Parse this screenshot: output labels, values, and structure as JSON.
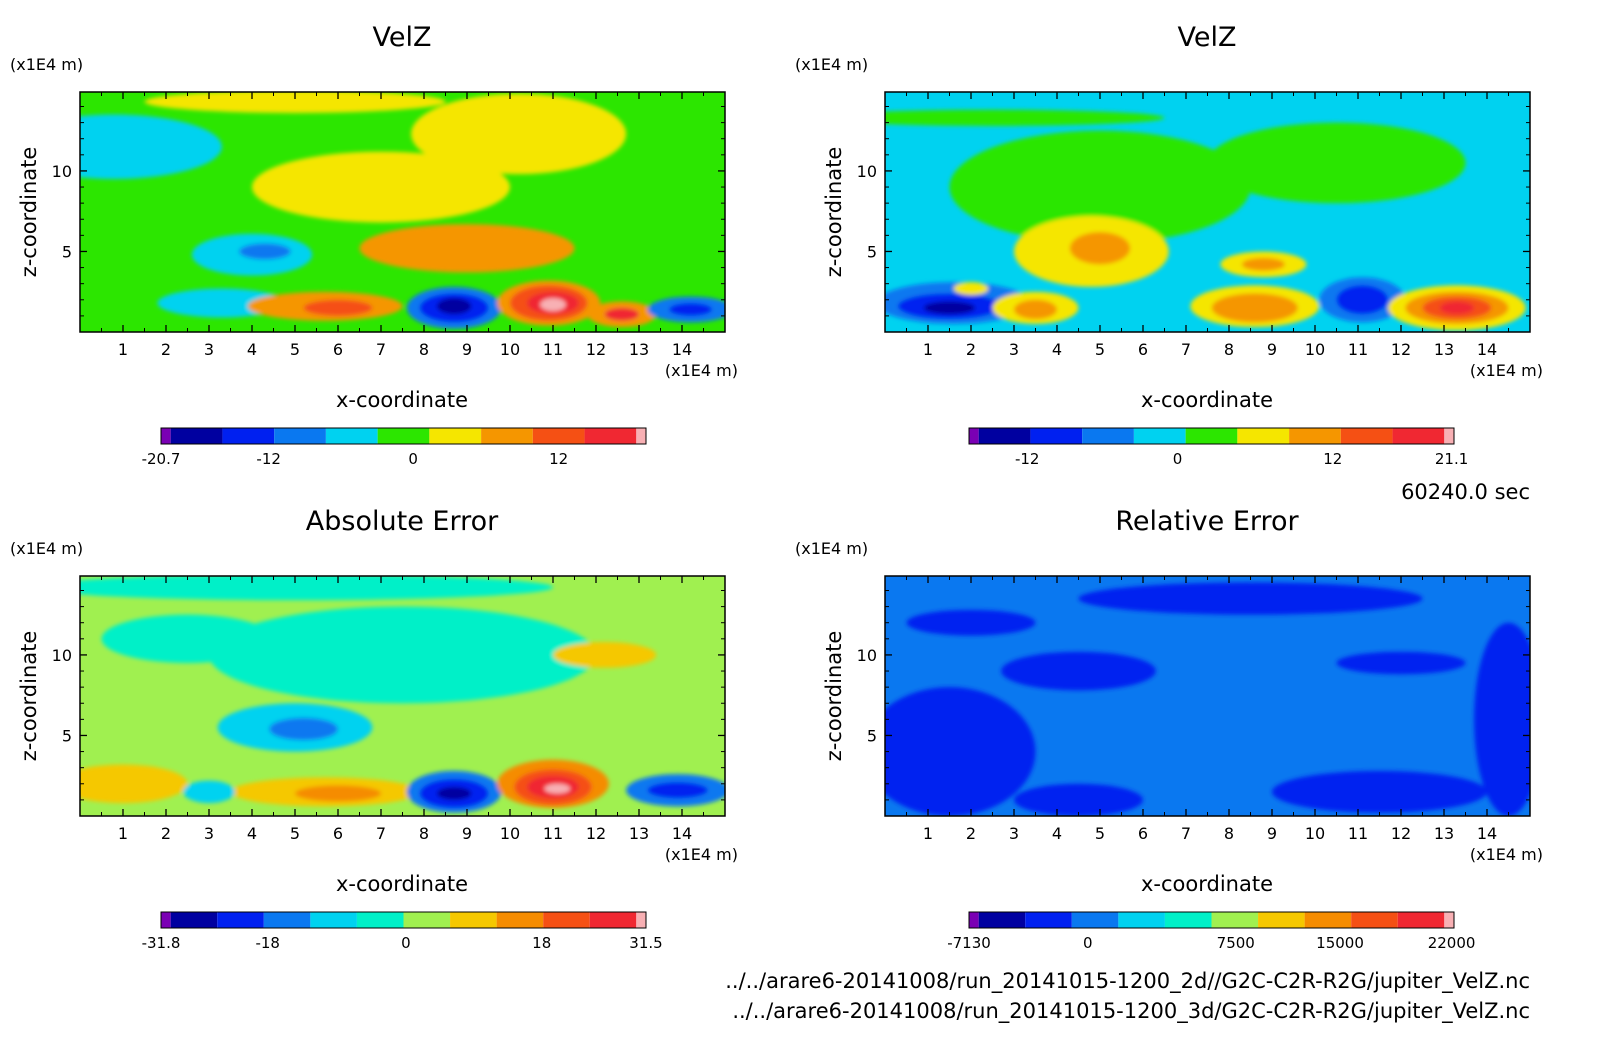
{
  "time_label": "60240.0 sec",
  "files": [
    "../../arare6-20141008/run_20141015-1200_2d//G2C-C2R-R2G/jupiter_VelZ.nc",
    "../../arare6-20141008/run_20141015-1200_3d/G2C-C2R-R2G/jupiter_VelZ.nc"
  ],
  "chart_data": [
    {
      "type": "heatmap",
      "title": "VelZ",
      "xlabel": "x-coordinate",
      "ylabel": "z-coordinate",
      "x_unit": "(x1E4 m)",
      "y_unit": "(x1E4 m)",
      "xlim": [
        0,
        15
      ],
      "ylim": [
        0,
        14.9
      ],
      "x_ticks": [
        "1",
        "2",
        "3",
        "4",
        "5",
        "6",
        "7",
        "8",
        "9",
        "10",
        "11",
        "12",
        "13",
        "14"
      ],
      "y_ticks": [
        "5",
        "10"
      ],
      "background_level": 5,
      "palette": [
        "#7a00b4",
        "#0000a0",
        "#0020f0",
        "#0a78f0",
        "#00d2f0",
        "#2ce600",
        "#f5e600",
        "#f59600",
        "#f55014",
        "#f02832",
        "#f8b0b4"
      ],
      "colorbar_ticks": [
        "-20.7",
        "-12",
        "0",
        "12"
      ],
      "colorbar_tick_pos": [
        0,
        0.222,
        0.52,
        0.82
      ],
      "features": [
        {
          "x": 0.8,
          "y": 11.5,
          "rx": 2.5,
          "ry": 2.0,
          "level": 4
        },
        {
          "x": 4.0,
          "y": 4.8,
          "rx": 1.4,
          "ry": 1.3,
          "level": 4
        },
        {
          "x": 4.3,
          "y": 5.0,
          "rx": 0.6,
          "ry": 0.5,
          "level": 3
        },
        {
          "x": 3.3,
          "y": 1.8,
          "rx": 1.5,
          "ry": 0.9,
          "level": 4
        },
        {
          "x": 7.0,
          "y": 9.0,
          "rx": 3.0,
          "ry": 2.2,
          "level": 6
        },
        {
          "x": 10.2,
          "y": 12.3,
          "rx": 2.5,
          "ry": 2.5,
          "level": 6
        },
        {
          "x": 5.0,
          "y": 14.3,
          "rx": 3.5,
          "ry": 0.7,
          "level": 6
        },
        {
          "x": 9.0,
          "y": 5.2,
          "rx": 2.5,
          "ry": 1.5,
          "level": 7
        },
        {
          "x": 5.7,
          "y": 1.6,
          "rx": 1.8,
          "ry": 0.9,
          "level": 7
        },
        {
          "x": 6.0,
          "y": 1.5,
          "rx": 0.8,
          "ry": 0.5,
          "level": 8
        },
        {
          "x": 8.7,
          "y": 1.5,
          "rx": 1.1,
          "ry": 1.3,
          "level": 3
        },
        {
          "x": 8.7,
          "y": 1.5,
          "rx": 0.8,
          "ry": 0.9,
          "level": 2
        },
        {
          "x": 8.7,
          "y": 1.6,
          "rx": 0.4,
          "ry": 0.5,
          "level": 1
        },
        {
          "x": 10.9,
          "y": 1.8,
          "rx": 1.2,
          "ry": 1.4,
          "level": 7
        },
        {
          "x": 10.9,
          "y": 1.8,
          "rx": 0.9,
          "ry": 1.1,
          "level": 8
        },
        {
          "x": 11.0,
          "y": 1.8,
          "rx": 0.6,
          "ry": 0.7,
          "level": 9
        },
        {
          "x": 11.0,
          "y": 1.7,
          "rx": 0.3,
          "ry": 0.4,
          "level": 10
        },
        {
          "x": 12.6,
          "y": 1.1,
          "rx": 0.8,
          "ry": 0.8,
          "level": 7
        },
        {
          "x": 12.6,
          "y": 1.1,
          "rx": 0.4,
          "ry": 0.4,
          "level": 9
        },
        {
          "x": 14.2,
          "y": 1.4,
          "rx": 1.0,
          "ry": 0.8,
          "level": 3
        },
        {
          "x": 14.2,
          "y": 1.4,
          "rx": 0.5,
          "ry": 0.4,
          "level": 2
        }
      ]
    },
    {
      "type": "heatmap",
      "title": "VelZ",
      "xlabel": "x-coordinate",
      "ylabel": "z-coordinate",
      "x_unit": "(x1E4 m)",
      "y_unit": "(x1E4 m)",
      "xlim": [
        0,
        15
      ],
      "ylim": [
        0,
        14.9
      ],
      "x_ticks": [
        "1",
        "2",
        "3",
        "4",
        "5",
        "6",
        "7",
        "8",
        "9",
        "10",
        "11",
        "12",
        "13",
        "14"
      ],
      "y_ticks": [
        "5",
        "10"
      ],
      "background_level": 4,
      "palette": [
        "#7a00b4",
        "#0000a0",
        "#0020f0",
        "#0a78f0",
        "#00d2f0",
        "#2ce600",
        "#f5e600",
        "#f59600",
        "#f55014",
        "#f02832",
        "#f8b0b4"
      ],
      "colorbar_ticks": [
        "-12",
        "0",
        "12",
        "21.1"
      ],
      "colorbar_tick_pos": [
        0.12,
        0.43,
        0.75,
        0.995
      ],
      "features": [
        {
          "x": 5.0,
          "y": 9.0,
          "rx": 3.5,
          "ry": 3.5,
          "level": 5
        },
        {
          "x": 10.5,
          "y": 10.5,
          "rx": 3.0,
          "ry": 2.5,
          "level": 5
        },
        {
          "x": 2.5,
          "y": 13.3,
          "rx": 4.0,
          "ry": 0.5,
          "level": 5
        },
        {
          "x": 4.8,
          "y": 5.0,
          "rx": 1.8,
          "ry": 2.2,
          "level": 6
        },
        {
          "x": 5.0,
          "y": 5.2,
          "rx": 0.7,
          "ry": 1.0,
          "level": 7
        },
        {
          "x": 8.8,
          "y": 4.2,
          "rx": 1.0,
          "ry": 0.8,
          "level": 6
        },
        {
          "x": 8.8,
          "y": 4.2,
          "rx": 0.5,
          "ry": 0.4,
          "level": 7
        },
        {
          "x": 1.6,
          "y": 1.8,
          "rx": 1.8,
          "ry": 1.3,
          "level": 3
        },
        {
          "x": 1.5,
          "y": 1.6,
          "rx": 1.2,
          "ry": 0.8,
          "level": 2
        },
        {
          "x": 1.5,
          "y": 1.5,
          "rx": 0.6,
          "ry": 0.4,
          "level": 1
        },
        {
          "x": 3.5,
          "y": 1.5,
          "rx": 1.0,
          "ry": 1.0,
          "level": 6
        },
        {
          "x": 3.5,
          "y": 1.4,
          "rx": 0.5,
          "ry": 0.6,
          "level": 7
        },
        {
          "x": 8.6,
          "y": 1.6,
          "rx": 1.5,
          "ry": 1.3,
          "level": 6
        },
        {
          "x": 8.6,
          "y": 1.5,
          "rx": 1.0,
          "ry": 0.9,
          "level": 7
        },
        {
          "x": 11.1,
          "y": 2.0,
          "rx": 1.0,
          "ry": 1.4,
          "level": 3
        },
        {
          "x": 11.1,
          "y": 2.0,
          "rx": 0.6,
          "ry": 0.9,
          "level": 2
        },
        {
          "x": 13.3,
          "y": 1.5,
          "rx": 1.6,
          "ry": 1.4,
          "level": 6
        },
        {
          "x": 13.3,
          "y": 1.5,
          "rx": 1.2,
          "ry": 1.0,
          "level": 7
        },
        {
          "x": 13.3,
          "y": 1.5,
          "rx": 0.8,
          "ry": 0.7,
          "level": 8
        },
        {
          "x": 13.3,
          "y": 1.5,
          "rx": 0.4,
          "ry": 0.4,
          "level": 9
        },
        {
          "x": 2.0,
          "y": 2.7,
          "rx": 0.4,
          "ry": 0.4,
          "level": 6
        }
      ]
    },
    {
      "type": "heatmap",
      "title": "Absolute Error",
      "xlabel": "x-coordinate",
      "ylabel": "z-coordinate",
      "x_unit": "(x1E4 m)",
      "y_unit": "(x1E4 m)",
      "xlim": [
        0,
        15
      ],
      "ylim": [
        0,
        14.9
      ],
      "x_ticks": [
        "1",
        "2",
        "3",
        "4",
        "5",
        "6",
        "7",
        "8",
        "9",
        "10",
        "11",
        "12",
        "13",
        "14"
      ],
      "y_ticks": [
        "5",
        "10"
      ],
      "background_level": 6,
      "palette": [
        "#7a00b4",
        "#0000a0",
        "#0020f0",
        "#0a78f0",
        "#00d2f0",
        "#00f0c8",
        "#a0f050",
        "#f5c800",
        "#f58c00",
        "#f55014",
        "#f02832",
        "#f8b0b4"
      ],
      "colorbar_ticks": [
        "-31.8",
        "-18",
        "0",
        "18",
        "31.5"
      ],
      "colorbar_tick_pos": [
        0,
        0.22,
        0.505,
        0.785,
        1.0
      ],
      "features": [
        {
          "x": 7.5,
          "y": 10.0,
          "rx": 4.5,
          "ry": 3.0,
          "level": 5
        },
        {
          "x": 2.5,
          "y": 11.0,
          "rx": 2.0,
          "ry": 1.5,
          "level": 5
        },
        {
          "x": 5.0,
          "y": 14.2,
          "rx": 6.0,
          "ry": 0.8,
          "level": 5
        },
        {
          "x": 5.0,
          "y": 5.5,
          "rx": 1.8,
          "ry": 1.5,
          "level": 4
        },
        {
          "x": 5.2,
          "y": 5.4,
          "rx": 0.8,
          "ry": 0.7,
          "level": 3
        },
        {
          "x": 12.2,
          "y": 10.0,
          "rx": 1.2,
          "ry": 0.8,
          "level": 7
        },
        {
          "x": 1.0,
          "y": 2.0,
          "rx": 1.5,
          "ry": 1.2,
          "level": 7
        },
        {
          "x": 5.7,
          "y": 1.5,
          "rx": 2.2,
          "ry": 0.9,
          "level": 7
        },
        {
          "x": 6.0,
          "y": 1.4,
          "rx": 1.0,
          "ry": 0.5,
          "level": 8
        },
        {
          "x": 8.7,
          "y": 1.5,
          "rx": 1.1,
          "ry": 1.3,
          "level": 3
        },
        {
          "x": 8.7,
          "y": 1.4,
          "rx": 0.8,
          "ry": 0.9,
          "level": 2
        },
        {
          "x": 8.7,
          "y": 1.4,
          "rx": 0.4,
          "ry": 0.4,
          "level": 1
        },
        {
          "x": 11.0,
          "y": 2.0,
          "rx": 1.3,
          "ry": 1.5,
          "level": 8
        },
        {
          "x": 11.0,
          "y": 1.8,
          "rx": 0.9,
          "ry": 1.1,
          "level": 9
        },
        {
          "x": 11.0,
          "y": 1.8,
          "rx": 0.6,
          "ry": 0.7,
          "level": 10
        },
        {
          "x": 11.1,
          "y": 1.7,
          "rx": 0.3,
          "ry": 0.3,
          "level": 11
        },
        {
          "x": 13.9,
          "y": 1.6,
          "rx": 1.2,
          "ry": 1.0,
          "level": 3
        },
        {
          "x": 13.9,
          "y": 1.6,
          "rx": 0.7,
          "ry": 0.5,
          "level": 2
        },
        {
          "x": 3.0,
          "y": 1.5,
          "rx": 0.6,
          "ry": 0.7,
          "level": 4
        }
      ]
    },
    {
      "type": "heatmap",
      "title": "Relative Error",
      "xlabel": "x-coordinate",
      "ylabel": "z-coordinate",
      "x_unit": "(x1E4 m)",
      "y_unit": "(x1E4 m)",
      "xlim": [
        0,
        15
      ],
      "ylim": [
        0,
        14.9
      ],
      "x_ticks": [
        "1",
        "2",
        "3",
        "4",
        "5",
        "6",
        "7",
        "8",
        "9",
        "10",
        "11",
        "12",
        "13",
        "14"
      ],
      "y_ticks": [
        "5",
        "10"
      ],
      "background_level": 3,
      "palette": [
        "#7a00b4",
        "#0000a0",
        "#0020f0",
        "#0a78f0",
        "#00d2f0",
        "#00f0c8",
        "#a0f050",
        "#f5c800",
        "#f58c00",
        "#f55014",
        "#f02832",
        "#f8b0b4"
      ],
      "colorbar_ticks": [
        "-7130",
        "0",
        "7500",
        "15000",
        "22000"
      ],
      "colorbar_tick_pos": [
        0,
        0.245,
        0.55,
        0.765,
        0.995
      ],
      "features": [
        {
          "x": 1.5,
          "y": 4.0,
          "rx": 2.0,
          "ry": 4.0,
          "level": 2
        },
        {
          "x": 4.5,
          "y": 9.0,
          "rx": 1.8,
          "ry": 1.2,
          "level": 2
        },
        {
          "x": 8.5,
          "y": 13.5,
          "rx": 4.0,
          "ry": 1.0,
          "level": 2
        },
        {
          "x": 14.5,
          "y": 6.0,
          "rx": 0.8,
          "ry": 6.0,
          "level": 2
        },
        {
          "x": 11.5,
          "y": 1.5,
          "rx": 2.5,
          "ry": 1.3,
          "level": 2
        },
        {
          "x": 4.5,
          "y": 1.0,
          "rx": 1.5,
          "ry": 1.0,
          "level": 2
        },
        {
          "x": 12.0,
          "y": 9.5,
          "rx": 1.5,
          "ry": 0.7,
          "level": 2
        },
        {
          "x": 2.0,
          "y": 12.0,
          "rx": 1.5,
          "ry": 0.8,
          "level": 2
        }
      ]
    }
  ]
}
